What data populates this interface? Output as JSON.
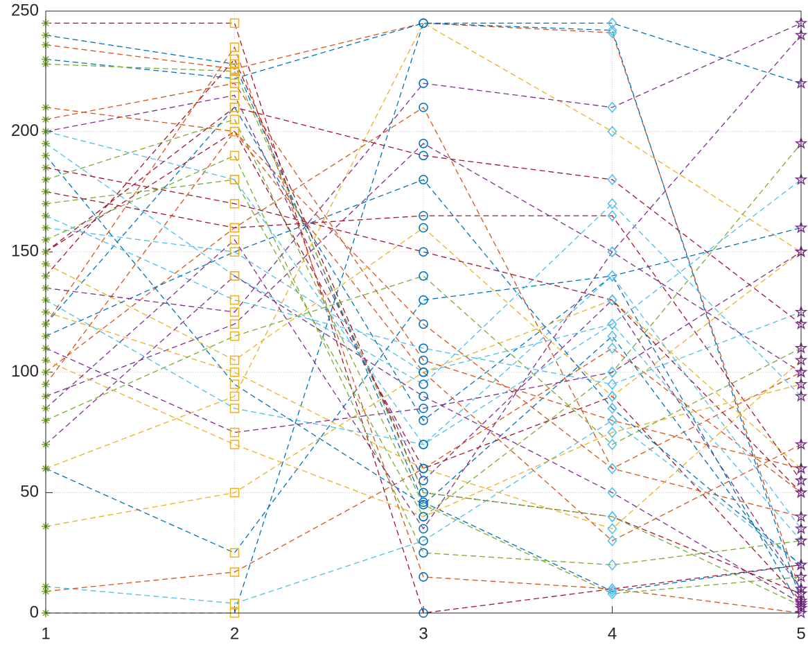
{
  "chart_data": {
    "type": "line",
    "x": [
      1,
      2,
      3,
      4,
      5
    ],
    "xlim": [
      1,
      5
    ],
    "ylim": [
      0,
      250
    ],
    "xticks": [
      1,
      2,
      3,
      4,
      5
    ],
    "yticks": [
      0,
      50,
      100,
      150,
      200,
      250
    ],
    "grid": true,
    "line_style": "dashed",
    "marker_shapes": [
      "asterisk",
      "square",
      "circle",
      "diamond",
      "star"
    ],
    "marker_colors": [
      "#77AC30",
      "#EDB120",
      "#0072BD",
      "#4DBEEE",
      "#7E2F8E"
    ],
    "series": [
      {
        "color": "#0072BD",
        "values": [
          240,
          228,
          46,
          9,
          20
        ]
      },
      {
        "color": "#A2142F",
        "values": [
          245,
          245,
          0,
          10,
          20
        ]
      },
      {
        "color": "#D95319",
        "values": [
          236,
          226,
          245,
          241,
          8
        ]
      },
      {
        "color": "#0072BD",
        "values": [
          230,
          222,
          245,
          242,
          5
        ]
      },
      {
        "color": "#7E2F8E",
        "values": [
          200,
          215,
          55,
          130,
          10
        ]
      },
      {
        "color": "#77AC30",
        "values": [
          180,
          205,
          45,
          8,
          15
        ]
      },
      {
        "color": "#4DBEEE",
        "values": [
          160,
          150,
          100,
          120,
          30
        ]
      },
      {
        "color": "#A2142F",
        "values": [
          150,
          200,
          60,
          90,
          5
        ]
      },
      {
        "color": "#0072BD",
        "values": [
          120,
          210,
          80,
          140,
          2
        ]
      },
      {
        "color": "#D95319",
        "values": [
          100,
          160,
          210,
          60,
          100
        ]
      },
      {
        "color": "#EDB120",
        "values": [
          60,
          90,
          245,
          200,
          150
        ]
      },
      {
        "color": "#0072BD",
        "values": [
          0,
          0,
          245,
          245,
          220
        ]
      },
      {
        "color": "#D95319",
        "values": [
          9,
          17,
          60,
          110,
          50
        ]
      },
      {
        "color": "#EDB120",
        "values": [
          36,
          50,
          100,
          130,
          60
        ]
      },
      {
        "color": "#4DBEEE",
        "values": [
          11,
          4,
          30,
          80,
          20
        ]
      },
      {
        "color": "#0072BD",
        "values": [
          60,
          25,
          130,
          140,
          160
        ]
      },
      {
        "color": "#7E2F8E",
        "values": [
          90,
          120,
          195,
          150,
          240
        ]
      },
      {
        "color": "#A2142F",
        "values": [
          140,
          230,
          50,
          40,
          8
        ]
      },
      {
        "color": "#77AC30",
        "values": [
          170,
          180,
          40,
          100,
          195
        ]
      },
      {
        "color": "#4DBEEE",
        "values": [
          195,
          140,
          95,
          170,
          90
        ]
      },
      {
        "color": "#D95319",
        "values": [
          210,
          200,
          120,
          60,
          40
        ]
      },
      {
        "color": "#EDB120",
        "values": [
          125,
          100,
          60,
          35,
          105
        ]
      },
      {
        "color": "#7E2F8E",
        "values": [
          110,
          75,
          85,
          100,
          150
        ]
      },
      {
        "color": "#77AC30",
        "values": [
          80,
          115,
          140,
          70,
          110
        ]
      },
      {
        "color": "#4DBEEE",
        "values": [
          130,
          85,
          70,
          120,
          180
        ]
      },
      {
        "color": "#A2142F",
        "values": [
          175,
          160,
          165,
          165,
          55
        ]
      },
      {
        "color": "#0072BD",
        "values": [
          190,
          95,
          45,
          115,
          10
        ]
      },
      {
        "color": "#D95319",
        "values": [
          205,
          220,
          105,
          80,
          60
        ]
      },
      {
        "color": "#EDB120",
        "values": [
          145,
          105,
          160,
          90,
          150
        ]
      },
      {
        "color": "#7E2F8E",
        "values": [
          70,
          140,
          90,
          50,
          4
        ]
      },
      {
        "color": "#77AC30",
        "values": [
          155,
          190,
          25,
          20,
          30
        ]
      },
      {
        "color": "#4DBEEE",
        "values": [
          165,
          130,
          110,
          95,
          125
        ]
      },
      {
        "color": "#A2142F",
        "values": [
          185,
          170,
          150,
          130,
          50
        ]
      },
      {
        "color": "#0072BD",
        "values": [
          115,
          150,
          180,
          85,
          20
        ]
      },
      {
        "color": "#D95319",
        "values": [
          95,
          200,
          100,
          30,
          70
        ]
      },
      {
        "color": "#7E2F8E",
        "values": [
          135,
          125,
          220,
          210,
          245
        ]
      },
      {
        "color": "#EDB120",
        "values": [
          105,
          70,
          40,
          75,
          95
        ]
      },
      {
        "color": "#77AC30",
        "values": [
          228,
          225,
          50,
          40,
          3
        ]
      },
      {
        "color": "#4DBEEE",
        "values": [
          200,
          180,
          70,
          140,
          35
        ]
      },
      {
        "color": "#A2142F",
        "values": [
          150,
          210,
          190,
          180,
          120
        ]
      },
      {
        "color": "#D95319",
        "values": [
          120,
          235,
          15,
          10,
          0
        ]
      },
      {
        "color": "#7E2F8E",
        "values": [
          85,
          155,
          35,
          150,
          100
        ]
      }
    ]
  }
}
